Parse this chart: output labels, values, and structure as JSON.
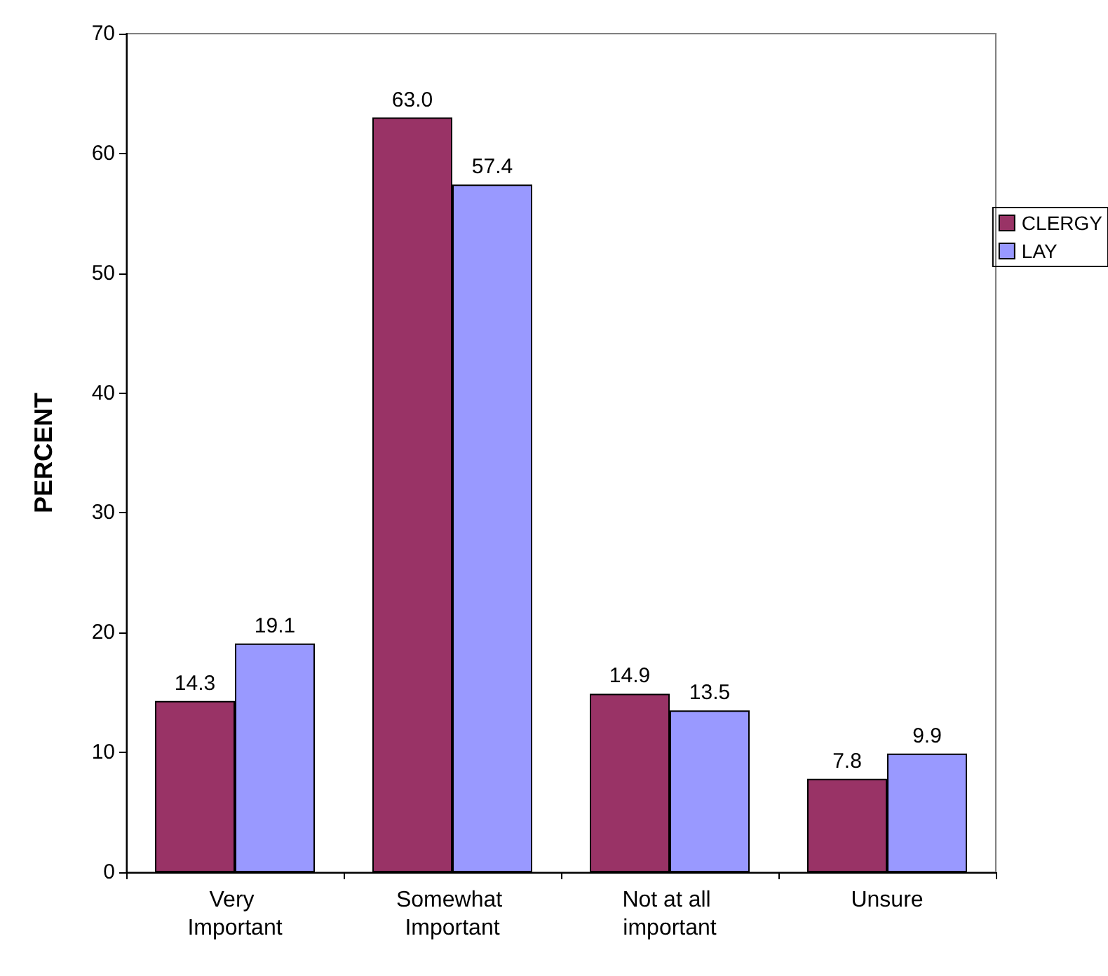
{
  "chart_data": {
    "type": "bar",
    "ylabel": "PERCENT",
    "categories": [
      "Very Important",
      "Somewhat Important",
      "Not at all important",
      "Unsure"
    ],
    "series": [
      {
        "name": "CLERGY",
        "color": "#993366",
        "values": [
          14.3,
          63.0,
          14.9,
          7.8
        ],
        "value_labels": [
          "14.3",
          "63.0",
          "14.9",
          "7.8"
        ]
      },
      {
        "name": "LAY",
        "color": "#9999ff",
        "values": [
          19.1,
          57.4,
          13.5,
          9.9
        ],
        "value_labels": [
          "19.1",
          "57.4",
          "13.5",
          "9.9"
        ]
      }
    ],
    "ylim": [
      0,
      70
    ],
    "yticks": [
      0,
      10,
      20,
      30,
      40,
      50,
      60,
      70
    ],
    "grid": false,
    "legend": "right"
  }
}
